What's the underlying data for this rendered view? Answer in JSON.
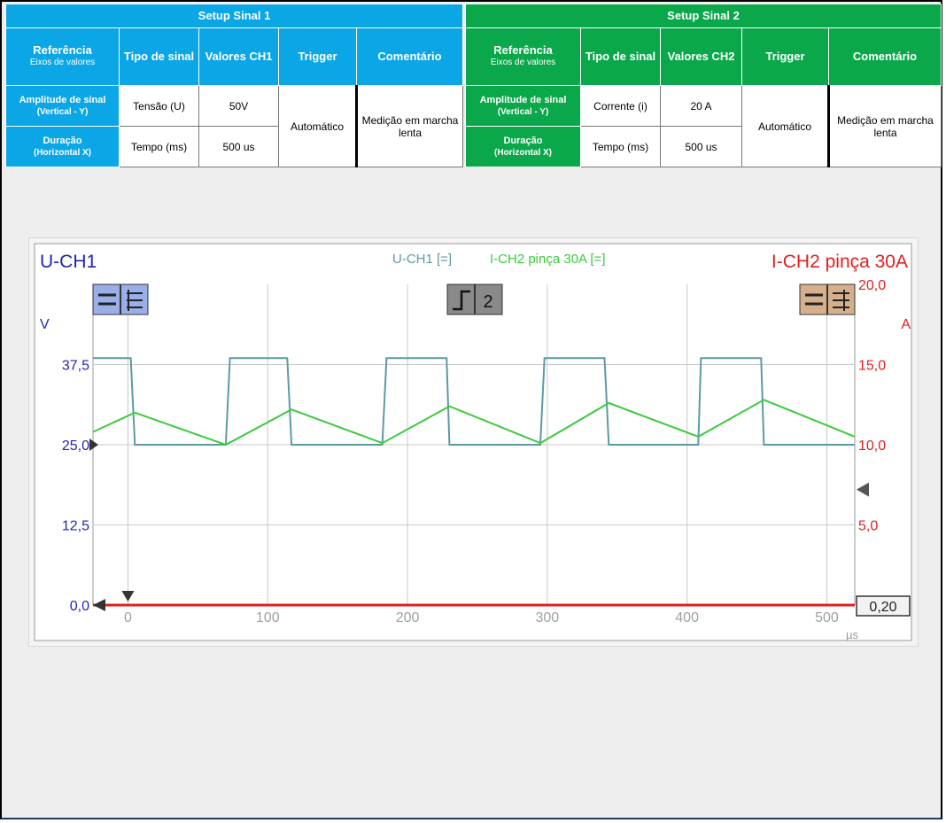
{
  "setup1": {
    "title": "Setup Sinal 1",
    "headers": {
      "ref": "Referência",
      "ref_sub": "Eixos de valores",
      "tipo": "Tipo de sinal",
      "valores": "Valores CH1",
      "trigger": "Trigger",
      "comentario": "Comentário"
    },
    "row1": {
      "label": "Amplitude de sinal",
      "label_sub": "(Vertical - Y)",
      "tipo": "Tensão (U)",
      "valor": "50V"
    },
    "row2": {
      "label": "Duração",
      "label_sub": "(Horizontal X)",
      "tipo": "Tempo (ms)",
      "valor": "500 us"
    },
    "trigger": "Automático",
    "comentario": "Medição em marcha lenta",
    "color": "#0aa6e6"
  },
  "setup2": {
    "title": "Setup Sinal 2",
    "headers": {
      "ref": "Referência",
      "ref_sub": "Eixos de valores",
      "tipo": "Tipo de sinal",
      "valores": "Valores CH2",
      "trigger": "Trigger",
      "comentario": "Comentário"
    },
    "row1": {
      "label": "Amplitude de sinal",
      "label_sub": "(Vertical - Y)",
      "tipo": "Corrente (i)",
      "valor": "20 A"
    },
    "row2": {
      "label": "Duração",
      "label_sub": "(Horizontal X)",
      "tipo": "Tempo (ms)",
      "valor": "500 us"
    },
    "trigger": "Automático",
    "comentario": "Medição em marcha lenta",
    "color": "#0aa84a"
  },
  "chart_data": {
    "type": "line",
    "left_title": "U-CH1",
    "right_title": "I-CH2 pinça 30A",
    "legend": [
      "U-CH1 [=]",
      "I-CH2 pinça 30A [=]"
    ],
    "trigger_label": "2",
    "ylabel_left": "V",
    "ylabel_right": "A",
    "xlabel": "µs",
    "xlim": [
      -25,
      520
    ],
    "x_ticks": [
      0,
      100,
      200,
      300,
      400,
      500
    ],
    "ylim_left": [
      0,
      50
    ],
    "y_ticks_left": [
      {
        "value": 0,
        "label": "0,0"
      },
      {
        "value": 12.5,
        "label": "12,5"
      },
      {
        "value": 25,
        "label": "25,0"
      },
      {
        "value": 37.5,
        "label": "37,5"
      }
    ],
    "ylim_right": [
      0,
      20
    ],
    "y_ticks_right": [
      {
        "value": 5,
        "label": "5,0"
      },
      {
        "value": 10,
        "label": "10,0"
      },
      {
        "value": 15,
        "label": "15,0"
      },
      {
        "value": 20,
        "label": "20,0"
      }
    ],
    "cursor_value": "0,20",
    "grid": true,
    "colors": {
      "ch1": "#5c9aa3",
      "ch2": "#3dc93d",
      "left_axis": "#2323b8",
      "right_axis": "#e02020",
      "grid": "#c8c8c8"
    },
    "series": [
      {
        "name": "U-CH1",
        "axis": "left",
        "x": [
          -25,
          2,
          5,
          70,
          73,
          114,
          117,
          182,
          185,
          228,
          230,
          295,
          298,
          341,
          344,
          408,
          410,
          453,
          455,
          520
        ],
        "y": [
          38.5,
          38.5,
          25,
          25,
          38.5,
          38.5,
          25,
          25,
          38.5,
          38.5,
          25,
          25,
          38.5,
          38.5,
          25,
          25,
          38.5,
          38.5,
          25,
          25
        ]
      },
      {
        "name": "I-CH2 pinça 30A",
        "axis": "right",
        "x": [
          -25,
          5,
          70,
          117,
          182,
          230,
          295,
          344,
          408,
          455,
          520
        ],
        "y": [
          10.8,
          12.0,
          10.0,
          12.2,
          10.1,
          12.4,
          10.1,
          12.6,
          10.5,
          12.8,
          10.5
        ]
      }
    ]
  }
}
